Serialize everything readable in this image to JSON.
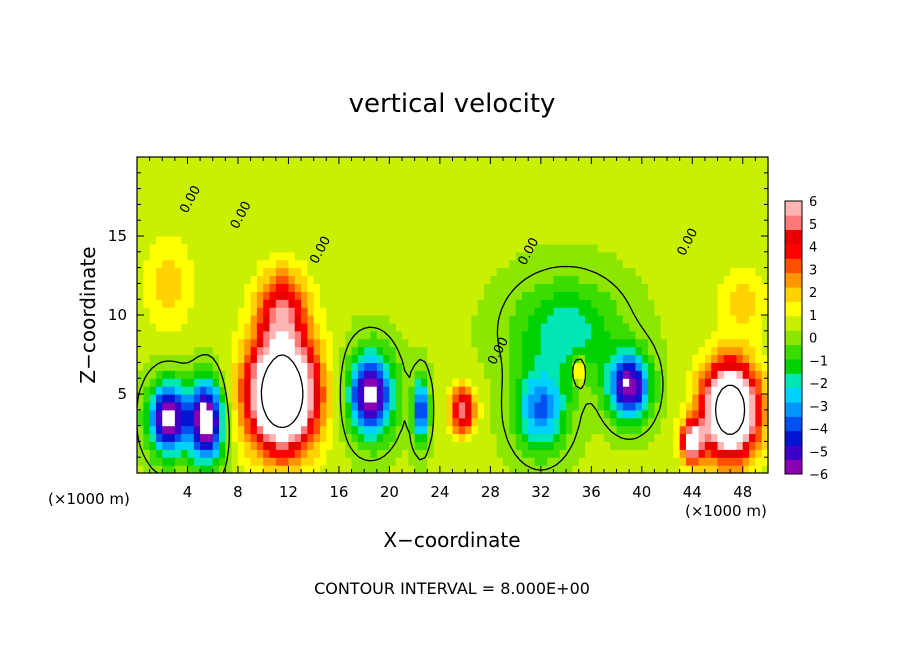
{
  "chart_data": {
    "type": "heatmap",
    "title": "vertical velocity",
    "xlabel": "X−coordinate",
    "ylabel": "Z−coordinate",
    "x_unit_left": "(×1000 m)",
    "x_unit_right": "(×1000 m)",
    "footer": "CONTOUR INTERVAL = 8.000E+00",
    "xlim": [
      0,
      50
    ],
    "ylim": [
      0,
      20
    ],
    "xticks": [
      4,
      8,
      12,
      16,
      20,
      24,
      28,
      32,
      36,
      40,
      44,
      48
    ],
    "yticks": [
      5,
      10,
      15
    ],
    "colorbar": {
      "vmin": -6,
      "vmax": 6,
      "tick_values": [
        6,
        5,
        4,
        3,
        2,
        1,
        0,
        -1,
        -2,
        -3,
        -4,
        -5,
        -6
      ],
      "tick_labels": [
        "6",
        "5",
        "4",
        "3",
        "2",
        "1",
        "0",
        "−1",
        "−2",
        "−3",
        "−4",
        "−5",
        "−6"
      ],
      "colors": [
        "#8c00b4",
        "#3c00c8",
        "#0014d2",
        "#0050f0",
        "#0096ff",
        "#00d2ff",
        "#00e6b4",
        "#00d200",
        "#3cdc00",
        "#8ce600",
        "#c8f000",
        "#ffff00",
        "#ffd200",
        "#ff9600",
        "#ff5000",
        "#ff0000",
        "#e60000",
        "#ff7878",
        "#ffb4b4"
      ]
    },
    "contour_labels": [
      {
        "text": "0.00",
        "x": 4.5,
        "z": 17.2
      },
      {
        "text": "0.00",
        "x": 8.5,
        "z": 16.2
      },
      {
        "text": "0.00",
        "x": 14.8,
        "z": 14.0
      },
      {
        "text": "0.00",
        "x": 28.9,
        "z": 7.6
      },
      {
        "text": "0.00",
        "x": 31.3,
        "z": 13.9
      },
      {
        "text": "0.00",
        "x": 43.9,
        "z": 14.5
      }
    ],
    "features": [
      {
        "x": 2.5,
        "z": 3.5,
        "w": -7.0,
        "sx": 1.5,
        "sz": 2.2
      },
      {
        "x": 5.5,
        "z": 3.3,
        "w": -7.5,
        "sx": 1.3,
        "sz": 2.5
      },
      {
        "x": 11.5,
        "z": 5.0,
        "w": 11.0,
        "sx": 2.7,
        "sz": 3.5
      },
      {
        "x": 11.5,
        "z": 10.5,
        "w": 4.0,
        "sx": 2.0,
        "sz": 2.5
      },
      {
        "x": 18.5,
        "z": 5.0,
        "w": -7.0,
        "sx": 1.7,
        "sz": 2.5
      },
      {
        "x": 22.5,
        "z": 4.0,
        "w": -5.0,
        "sx": 0.6,
        "sz": 2.0
      },
      {
        "x": 25.8,
        "z": 4.0,
        "w": 5.0,
        "sx": 1.0,
        "sz": 1.5
      },
      {
        "x": 32.0,
        "z": 4.0,
        "w": -4.0,
        "sx": 2.0,
        "sz": 2.5
      },
      {
        "x": 34.0,
        "z": 9.0,
        "w": -2.5,
        "sx": 4.0,
        "sz": 3.0
      },
      {
        "x": 35.0,
        "z": 6.5,
        "w": 3.5,
        "sx": 0.4,
        "sz": 0.8
      },
      {
        "x": 39.0,
        "z": 5.5,
        "w": -6.5,
        "sx": 1.6,
        "sz": 2.0
      },
      {
        "x": 44.0,
        "z": 2.0,
        "w": 6.0,
        "sx": 0.9,
        "sz": 1.3
      },
      {
        "x": 47.0,
        "z": 4.0,
        "w": 10.0,
        "sx": 2.2,
        "sz": 3.0
      },
      {
        "x": 2.5,
        "z": 12.0,
        "w": 1.5,
        "sx": 2.0,
        "sz": 3.0
      },
      {
        "x": 48.0,
        "z": 11.0,
        "w": 1.5,
        "sx": 2.0,
        "sz": 2.0
      }
    ]
  }
}
